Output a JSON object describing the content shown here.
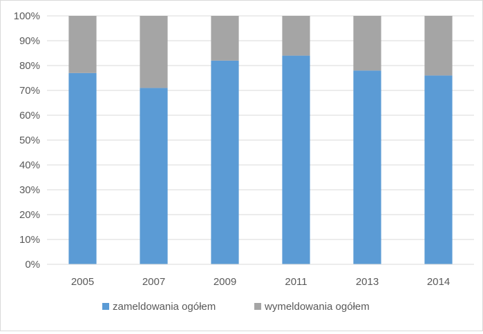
{
  "chart_data": {
    "type": "bar",
    "stacked": "percent",
    "categories": [
      "2005",
      "2007",
      "2009",
      "2011",
      "2013",
      "2014"
    ],
    "series": [
      {
        "name": "zameldowania ogółem",
        "values": [
          77,
          71,
          82,
          84,
          78,
          76
        ],
        "color": "#5b9bd5"
      },
      {
        "name": "wymeldowania ogółem",
        "values": [
          23,
          29,
          18,
          16,
          22,
          24
        ],
        "color": "#a5a5a5"
      }
    ],
    "y_ticks": [
      "0%",
      "10%",
      "20%",
      "30%",
      "40%",
      "50%",
      "60%",
      "70%",
      "80%",
      "90%",
      "100%"
    ],
    "ylim": [
      0,
      100
    ],
    "grid": true,
    "gridline_color": "#d9d9d9",
    "legend_position": "bottom"
  }
}
